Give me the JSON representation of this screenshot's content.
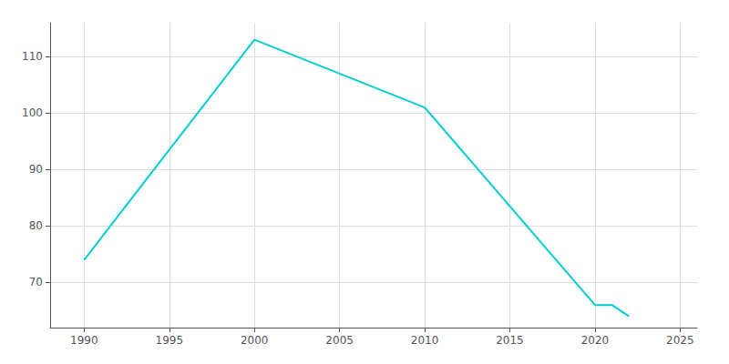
{
  "chart_data": {
    "type": "line",
    "x": [
      1990,
      2000,
      2010,
      2020,
      2021,
      2022
    ],
    "values": [
      74,
      113,
      101,
      66,
      66,
      64
    ],
    "color": "#00CED1",
    "xlim": [
      1988,
      2026
    ],
    "xticks": [
      1990,
      1995,
      2000,
      2005,
      2010,
      2015,
      2020,
      2025
    ],
    "ylim": [
      62,
      116
    ],
    "yticks": [
      70,
      80,
      90,
      100,
      110
    ],
    "grid": true
  }
}
